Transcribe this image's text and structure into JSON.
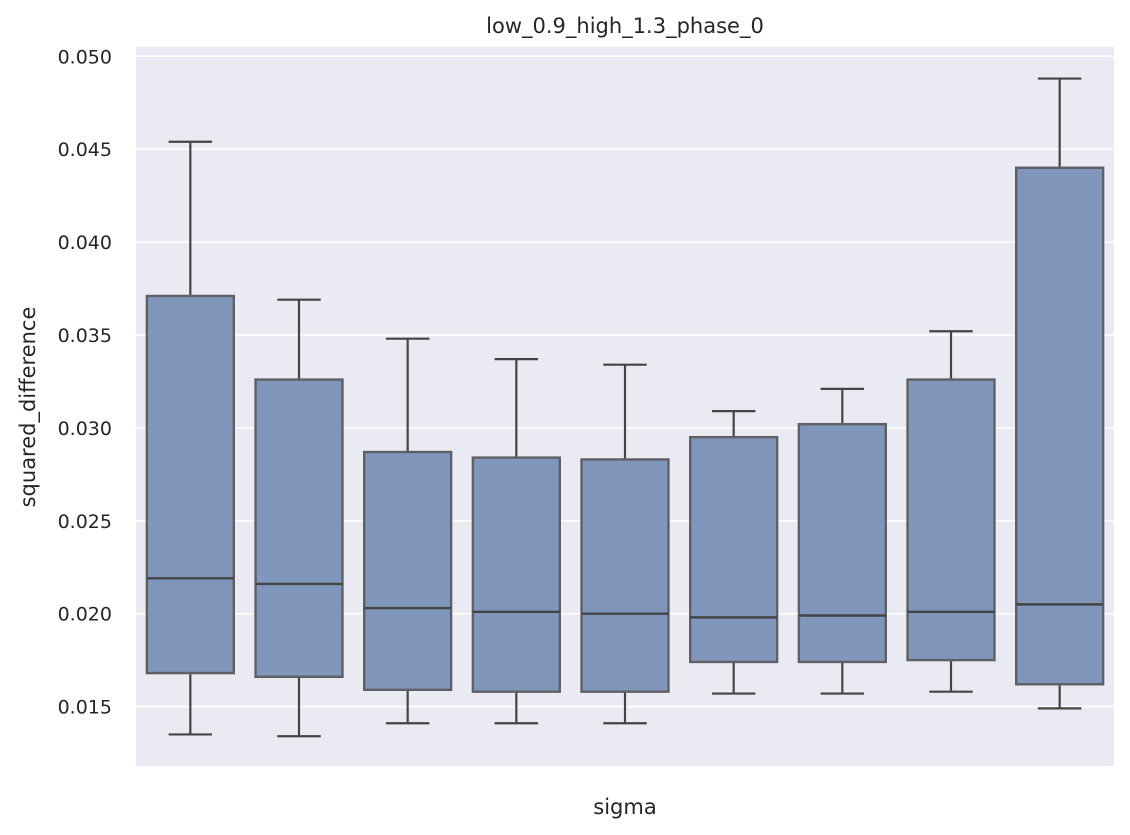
{
  "chart_data": {
    "type": "box",
    "title": "low_0.9_high_1.3_phase_0",
    "xlabel": "sigma",
    "ylabel": "squared_difference",
    "ylim": [
      0.0118,
      0.0505
    ],
    "yticks": [
      "0.015",
      "0.020",
      "0.025",
      "0.030",
      "0.035",
      "0.040",
      "0.045",
      "0.050"
    ],
    "grid": true,
    "colors": {
      "background": "#eaeaf2",
      "grid": "#ffffff",
      "box_fill": "#8196bb",
      "box_edge": "#5f5f66",
      "whisker": "#444444",
      "median": "#444444"
    },
    "boxes": [
      {
        "whislo": 0.0135,
        "q1": 0.0168,
        "med": 0.0219,
        "q3": 0.0371,
        "whishi": 0.0454
      },
      {
        "whislo": 0.0134,
        "q1": 0.0166,
        "med": 0.0216,
        "q3": 0.0326,
        "whishi": 0.0369
      },
      {
        "whislo": 0.0141,
        "q1": 0.0159,
        "med": 0.0203,
        "q3": 0.0287,
        "whishi": 0.0348
      },
      {
        "whislo": 0.0141,
        "q1": 0.0158,
        "med": 0.0201,
        "q3": 0.0284,
        "whishi": 0.0337
      },
      {
        "whislo": 0.0141,
        "q1": 0.0158,
        "med": 0.02,
        "q3": 0.0283,
        "whishi": 0.0334
      },
      {
        "whislo": 0.0157,
        "q1": 0.0174,
        "med": 0.0198,
        "q3": 0.0295,
        "whishi": 0.0309
      },
      {
        "whislo": 0.0157,
        "q1": 0.0174,
        "med": 0.0199,
        "q3": 0.0302,
        "whishi": 0.0321
      },
      {
        "whislo": 0.0158,
        "q1": 0.0175,
        "med": 0.0201,
        "q3": 0.0326,
        "whishi": 0.0352
      },
      {
        "whislo": 0.0149,
        "q1": 0.0162,
        "med": 0.0205,
        "q3": 0.044,
        "whishi": 0.0488
      }
    ]
  }
}
